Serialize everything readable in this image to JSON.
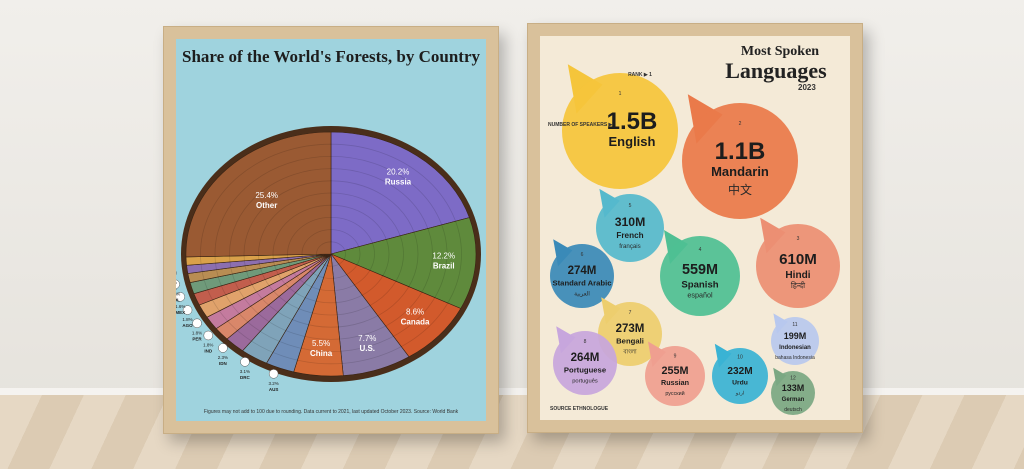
{
  "forest": {
    "title": "Share of the World's Forests, by Country",
    "footnote": "Figures may not add to 100 due to rounding. Data current to 2021, last updated October 2023. Source: World Bank"
  },
  "languages": {
    "title_top": "Most Spoken",
    "title_main": "Languages",
    "year": "2023",
    "rank_label": "RANK ▶ 1",
    "speakers_label": "NUMBER OF SPEAKERS ▶",
    "source_label": "SOURCE",
    "source_name": "ETHNOLOGUE"
  },
  "chart_data": [
    {
      "type": "pie",
      "title": "Share of the World's Forests, by Country",
      "slices": [
        {
          "label": "Russia",
          "value": 20.2,
          "display": "20.2%",
          "color": "#7d6bc6"
        },
        {
          "label": "Brazil",
          "value": 12.2,
          "display": "12.2%",
          "color": "#5f8a3c"
        },
        {
          "label": "Canada",
          "value": 8.6,
          "display": "8.6%",
          "color": "#d25a2c"
        },
        {
          "label": "U.S.",
          "value": 7.7,
          "display": "7.7%",
          "color": "#8a7ba6"
        },
        {
          "label": "China",
          "value": 5.5,
          "display": "5.5%",
          "color": "#d46a35"
        },
        {
          "label": "AUS",
          "value": 3.2,
          "display": "3.2%",
          "color": "#6f8db8"
        },
        {
          "label": "DRC",
          "value": 3.1,
          "display": "3.1%",
          "color": "#7fa3b9"
        },
        {
          "label": "IDN",
          "value": 2.3,
          "display": "2.3%",
          "color": "#9b6a9c"
        },
        {
          "label": "IND",
          "value": 1.8,
          "display": "1.8%",
          "color": "#d9876a"
        },
        {
          "label": "PER",
          "value": 1.8,
          "display": "1.8%",
          "color": "#c47b9e"
        },
        {
          "label": "AGO",
          "value": 1.8,
          "display": "1.8%",
          "color": "#e0a26b"
        },
        {
          "label": "MEX",
          "value": 1.6,
          "display": "1.6%",
          "color": "#c25e4d"
        },
        {
          "label": "COL",
          "value": 1.5,
          "display": "1.5%",
          "color": "#6f9a7a"
        },
        {
          "label": "BOL",
          "value": 1.2,
          "display": "1.2%",
          "color": "#b98d53"
        },
        {
          "label": "VEN",
          "value": 1.1,
          "display": "1.1%",
          "color": "#8c6fb0"
        },
        {
          "label": "TZA",
          "value": 1.1,
          "display": "1.1%",
          "color": "#d9a14a"
        },
        {
          "label": "Other",
          "value": 25.4,
          "display": "25.4%",
          "color": "#9a5a33"
        }
      ]
    },
    {
      "type": "bubble",
      "title": "Most Spoken Languages 2023",
      "items": [
        {
          "rank": "1",
          "speakers": "1.5B",
          "language": "English",
          "native": "",
          "color": "#f5c53b"
        },
        {
          "rank": "2",
          "speakers": "1.1B",
          "language": "Mandarin",
          "native": "中文",
          "color": "#ea7a4a"
        },
        {
          "rank": "3",
          "speakers": "610M",
          "language": "Hindi",
          "native": "हिन्दी",
          "color": "#ec8f73"
        },
        {
          "rank": "4",
          "speakers": "559M",
          "language": "Spanish",
          "native": "español",
          "color": "#4fbf93"
        },
        {
          "rank": "5",
          "speakers": "310M",
          "language": "French",
          "native": "français",
          "color": "#55b9cc"
        },
        {
          "rank": "6",
          "speakers": "274M",
          "language": "Standard Arabic",
          "native": "العربية",
          "color": "#3a8ab8"
        },
        {
          "rank": "7",
          "speakers": "273M",
          "language": "Bengali",
          "native": "বাংলা",
          "color": "#edce6e"
        },
        {
          "rank": "8",
          "speakers": "264M",
          "language": "Portuguese",
          "native": "português",
          "color": "#c7a6dd"
        },
        {
          "rank": "9",
          "speakers": "255M",
          "language": "Russian",
          "native": "русский",
          "color": "#ef9f90"
        },
        {
          "rank": "10",
          "speakers": "232M",
          "language": "Urdu",
          "native": "اردو",
          "color": "#3ab3d4"
        },
        {
          "rank": "11",
          "speakers": "199M",
          "language": "Indonesian",
          "native": "bahasa Indonesia",
          "color": "#b8c8ee"
        },
        {
          "rank": "12",
          "speakers": "133M",
          "language": "German",
          "native": "deutsch",
          "color": "#7ba883"
        }
      ]
    }
  ]
}
